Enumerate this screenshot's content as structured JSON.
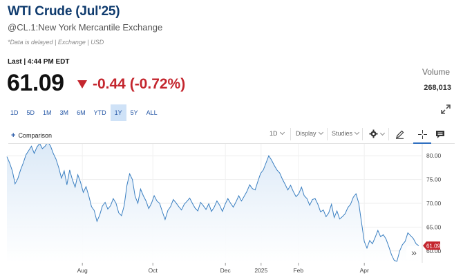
{
  "header": {
    "title": "WTI Crude (Jul'25)",
    "subtitle": "@CL.1:New York Mercantile Exchange",
    "delayed_note": "*Data is delayed | Exchange | USD"
  },
  "quote": {
    "last_label": "Last | 4:44 PM EDT",
    "price": "61.09",
    "change": "-0.44 (-0.72%)",
    "volume_label": "Volume",
    "volume_value": "268,013"
  },
  "ranges": [
    "1D",
    "5D",
    "1M",
    "3M",
    "6M",
    "YTD",
    "1Y",
    "5Y",
    "ALL"
  ],
  "active_range": "1Y",
  "toolbar": {
    "comparison": "Comparison",
    "interval": "1D",
    "display": "Display",
    "studies": "Studies"
  },
  "colors": {
    "accent": "#2456a5",
    "negative": "#c4262e",
    "line": "#3a7fc1",
    "fill": "#dbe9f7"
  },
  "icons": [
    "triangle-down-icon",
    "expand-icon",
    "plus-icon",
    "gear-icon",
    "pencil-icon",
    "crosshair-icon",
    "comment-icon",
    "double-chevron-right-icon"
  ],
  "chart_data": {
    "type": "area",
    "x_ticks": [
      "Aug",
      "Oct",
      "Dec",
      "2025",
      "Feb",
      "Apr"
    ],
    "y_ticks": [
      "80.00",
      "75.00",
      "70.00",
      "65.00",
      "60.00"
    ],
    "ylim": [
      57.5,
      82.5
    ],
    "last_value_label": "61.09",
    "grid": true,
    "values": [
      79.8,
      78.5,
      76.8,
      74.1,
      75.2,
      77.0,
      78.5,
      80.2,
      81.1,
      82.0,
      80.5,
      81.8,
      82.6,
      81.5,
      82.0,
      82.9,
      82.0,
      80.5,
      79.3,
      77.5,
      75.3,
      76.8,
      73.9,
      77.0,
      75.0,
      73.4,
      76.0,
      74.4,
      72.3,
      73.5,
      71.6,
      69.3,
      68.5,
      66.2,
      67.5,
      69.4,
      70.2,
      68.8,
      69.5,
      71.0,
      70.0,
      68.0,
      67.4,
      69.5,
      73.8,
      76.2,
      75.0,
      71.5,
      70.0,
      73.0,
      71.6,
      70.5,
      68.9,
      70.0,
      71.6,
      70.5,
      70.0,
      68.2,
      66.6,
      68.5,
      69.3,
      70.8,
      70.1,
      69.3,
      68.6,
      69.8,
      70.4,
      71.1,
      70.0,
      69.0,
      68.4,
      70.2,
      69.5,
      68.7,
      69.9,
      68.3,
      69.2,
      70.5,
      69.6,
      68.3,
      69.8,
      71.0,
      70.0,
      69.2,
      70.3,
      71.6,
      70.5,
      71.5,
      72.5,
      73.9,
      73.1,
      72.8,
      74.6,
      76.3,
      77.0,
      78.5,
      80.0,
      79.1,
      78.0,
      77.0,
      76.4,
      75.1,
      74.0,
      72.8,
      73.8,
      72.5,
      71.4,
      72.0,
      73.4,
      71.6,
      71.0,
      69.6,
      70.8,
      71.0,
      69.8,
      68.2,
      68.6,
      67.2,
      68.0,
      69.8,
      67.0,
      68.4,
      66.7,
      67.2,
      67.8,
      69.1,
      69.8,
      71.3,
      72.0,
      70.0,
      66.0,
      62.0,
      60.6,
      62.2,
      61.5,
      62.8,
      64.3,
      63.0,
      63.4,
      62.5,
      60.9,
      59.2,
      58.0,
      57.8,
      60.0,
      61.3,
      62.0,
      63.8,
      63.2,
      62.6,
      61.5,
      61.09
    ]
  }
}
